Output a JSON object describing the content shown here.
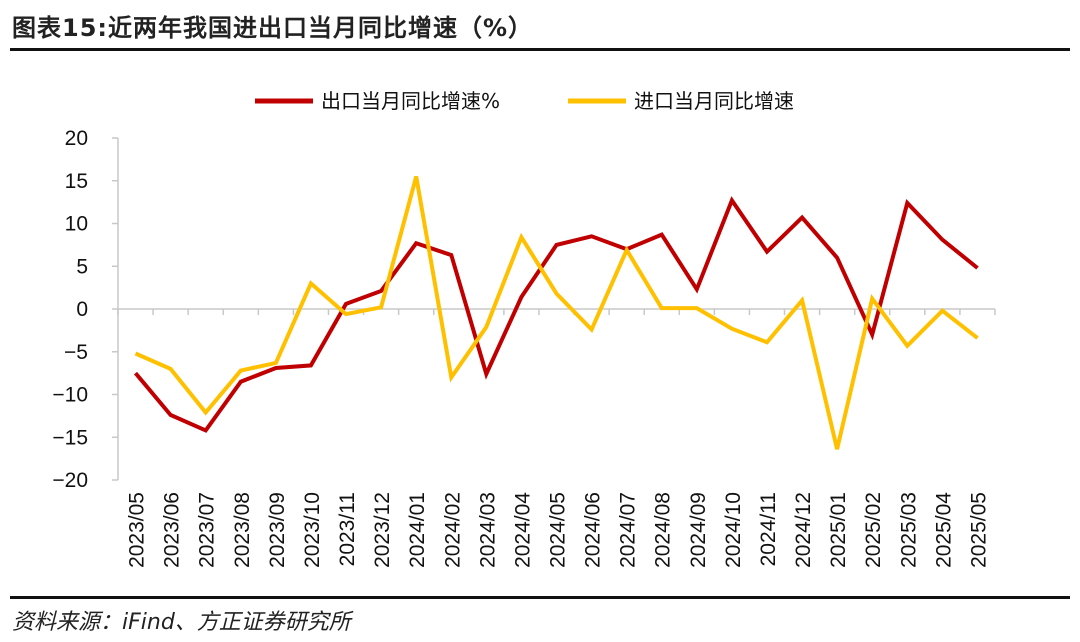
{
  "header": {
    "title": "图表15:近两年我国进出口当月同比增速（%）"
  },
  "footer": {
    "source": "资料来源：iFind、方正证券研究所"
  },
  "chart_data": {
    "type": "line",
    "categories": [
      "2023/05",
      "2023/06",
      "2023/07",
      "2023/08",
      "2023/09",
      "2023/10",
      "2023/11",
      "2023/12",
      "2024/01",
      "2024/02",
      "2024/03",
      "2024/04",
      "2024/05",
      "2024/06",
      "2024/07",
      "2024/08",
      "2024/09",
      "2024/10",
      "2024/11",
      "2024/12",
      "2025/01",
      "2025/02",
      "2025/03",
      "2025/04",
      "2025/05"
    ],
    "ylim": [
      -20,
      20
    ],
    "yticks": [
      20,
      15,
      10,
      5,
      0,
      -5,
      -10,
      -15,
      -20
    ],
    "legend_position": "top",
    "grid": false,
    "series": [
      {
        "name": "出口当月同比增速%",
        "color": "#C00000",
        "values": [
          -7.5,
          -12.4,
          -14.2,
          -8.5,
          -6.9,
          -6.6,
          0.6,
          2.1,
          7.7,
          6.3,
          -7.6,
          1.4,
          7.5,
          8.5,
          7.0,
          8.7,
          2.3,
          12.7,
          6.7,
          10.7,
          6.0,
          -3.0,
          12.4,
          8.1,
          4.8
        ]
      },
      {
        "name": "进口当月同比增速",
        "color": "#FFC000",
        "values": [
          -5.2,
          -7.0,
          -12.1,
          -7.2,
          -6.3,
          3.0,
          -0.6,
          0.2,
          15.5,
          -8.0,
          -2.1,
          8.4,
          1.8,
          -2.4,
          6.9,
          0.1,
          0.1,
          -2.3,
          -3.9,
          1.0,
          -16.4,
          1.2,
          -4.3,
          -0.2,
          -3.4
        ]
      }
    ]
  }
}
